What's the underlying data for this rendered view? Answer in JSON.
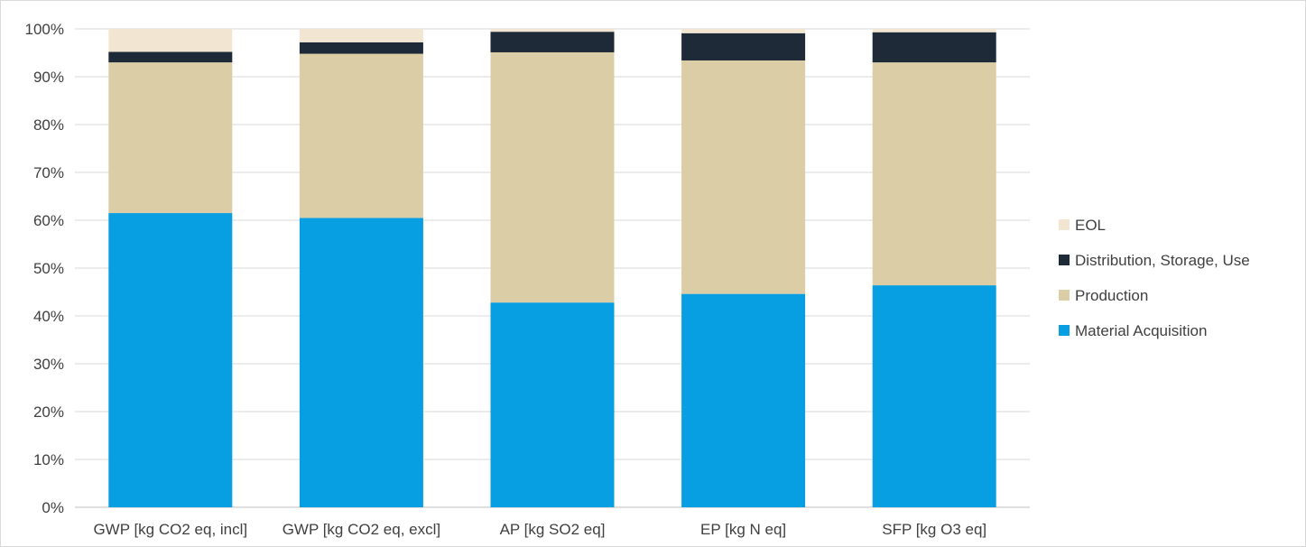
{
  "chart_data": {
    "type": "bar",
    "stacked": true,
    "percent": true,
    "categories": [
      "GWP [kg CO2 eq, incl]",
      "GWP [kg CO2 eq, excl]",
      "AP [kg SO2 eq]",
      "EP [kg N eq]",
      "SFP [kg O3 eq]"
    ],
    "series": [
      {
        "name": "Material Acquisition",
        "color": "#079fe1",
        "values": [
          61.5,
          60.5,
          42.8,
          44.6,
          46.4
        ]
      },
      {
        "name": "Production",
        "color": "#dbcda6",
        "values": [
          31.5,
          34.3,
          52.3,
          48.8,
          46.6
        ]
      },
      {
        "name": "Distribution, Storage, Use",
        "color": "#1f2a38",
        "values": [
          2.2,
          2.4,
          4.3,
          5.7,
          6.3
        ]
      },
      {
        "name": "EOL",
        "color": "#f2e6d2",
        "values": [
          4.8,
          2.8,
          0.6,
          0.9,
          0.7
        ]
      }
    ],
    "yticks": [
      "0%",
      "10%",
      "20%",
      "30%",
      "40%",
      "50%",
      "60%",
      "70%",
      "80%",
      "90%",
      "100%"
    ],
    "ylim": [
      0,
      100
    ],
    "title": "",
    "xlabel": "",
    "ylabel": "",
    "grid": true,
    "legend_position": "right",
    "legend_order": [
      "EOL",
      "Distribution, Storage, Use",
      "Production",
      "Material Acquisition"
    ]
  }
}
